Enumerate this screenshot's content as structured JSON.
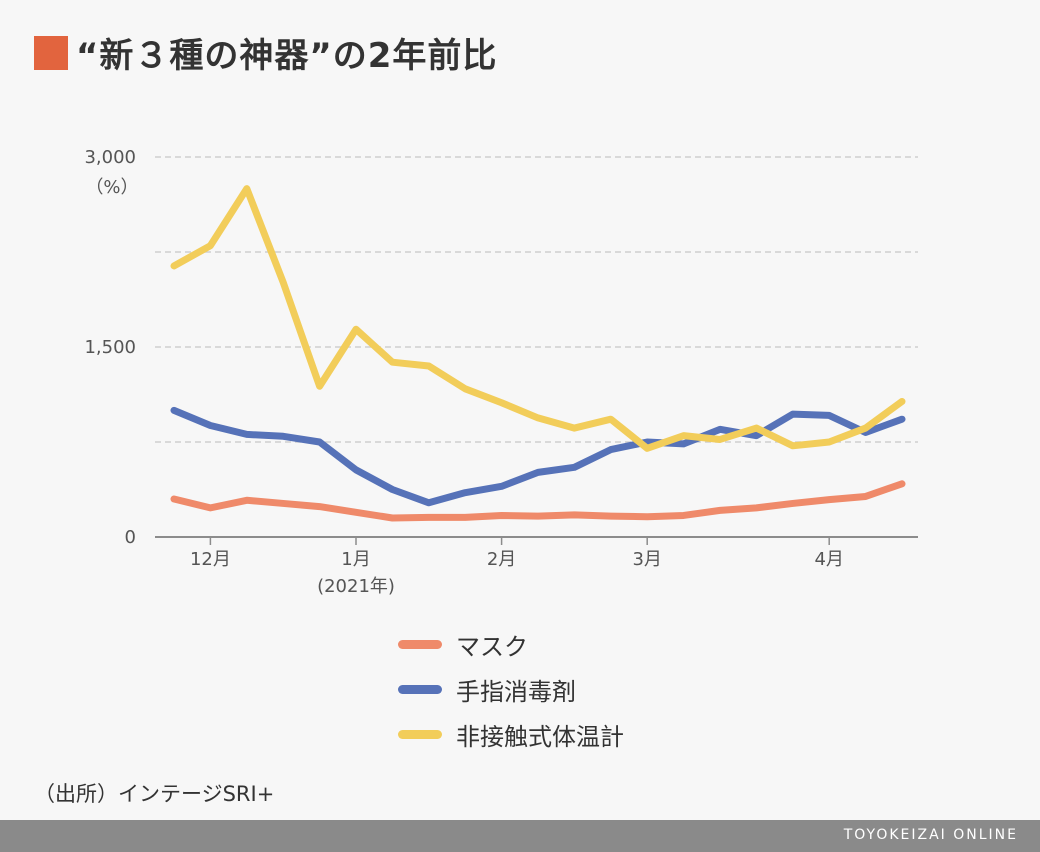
{
  "title": {
    "text": "“新３種の神器”の2年前比",
    "square_color": "#e2643e"
  },
  "chart_data": {
    "type": "line",
    "title": "“新３種の神器”の2年前比",
    "y_unit_label": "（%）",
    "ylim": [
      0,
      3000
    ],
    "y_ticks": [
      {
        "value": 0,
        "label": "0"
      },
      {
        "value": 750,
        "label": ""
      },
      {
        "value": 1500,
        "label": "1,500"
      },
      {
        "value": 2250,
        "label": ""
      },
      {
        "value": 3000,
        "label": "3,000"
      }
    ],
    "x_range": [
      0,
      20
    ],
    "x_ticks": [
      {
        "x": 1,
        "label": "12月",
        "sublabel": ""
      },
      {
        "x": 5,
        "label": "1月",
        "sublabel": "(2021年)"
      },
      {
        "x": 9,
        "label": "2月",
        "sublabel": ""
      },
      {
        "x": 13,
        "label": "3月",
        "sublabel": ""
      },
      {
        "x": 18,
        "label": "4月",
        "sublabel": ""
      }
    ],
    "grid": "horizontal-dashed",
    "series": [
      {
        "name": "マスク",
        "color": "#ef8a6a",
        "values": [
          300,
          230,
          290,
          265,
          240,
          195,
          150,
          155,
          155,
          170,
          165,
          175,
          165,
          160,
          170,
          210,
          230,
          265,
          295,
          320,
          420
        ]
      },
      {
        "name": "手指消毒剤",
        "color": "#5672b8",
        "values": [
          1000,
          880,
          810,
          795,
          750,
          530,
          375,
          270,
          350,
          400,
          510,
          550,
          690,
          750,
          735,
          850,
          800,
          970,
          960,
          825,
          930
        ]
      },
      {
        "name": "非接触式体温計",
        "color": "#f2cd5a",
        "values": [
          2140,
          2300,
          2750,
          2010,
          1190,
          1640,
          1380,
          1350,
          1170,
          1060,
          940,
          860,
          930,
          700,
          800,
          770,
          860,
          720,
          750,
          860,
          1070
        ]
      }
    ]
  },
  "source": "（出所）インテージSRI+",
  "footer": {
    "text": "TOYOKEIZAI ONLINE",
    "background": "#8a8a8a"
  }
}
